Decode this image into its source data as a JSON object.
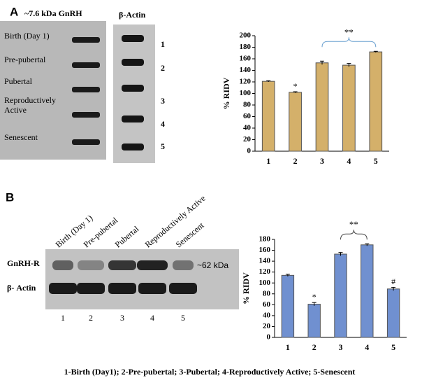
{
  "chart_data": [
    {
      "type": "bar",
      "ylabel": "% RIDV",
      "categories": [
        "1",
        "2",
        "3",
        "4",
        "5"
      ],
      "values": [
        121,
        102,
        153,
        149,
        172
      ],
      "errors": [
        1,
        1,
        3,
        3,
        1
      ],
      "color": "#d4b06a",
      "ylim": [
        0,
        200
      ],
      "yticks": [
        0,
        20,
        40,
        60,
        80,
        100,
        120,
        140,
        160,
        180,
        200
      ],
      "annotations": [
        {
          "label": "*",
          "bars": [
            "2"
          ]
        },
        {
          "label": "**",
          "bars": [
            "3",
            "4",
            "5"
          ]
        }
      ]
    },
    {
      "type": "bar",
      "ylabel": "% RIDV",
      "categories": [
        "1",
        "2",
        "3",
        "4",
        "5"
      ],
      "values": [
        114,
        61,
        153,
        170,
        89
      ],
      "errors": [
        2,
        3,
        3,
        2,
        3
      ],
      "color": "#7090d0",
      "ylim": [
        0,
        180
      ],
      "yticks": [
        0,
        20,
        40,
        60,
        80,
        100,
        120,
        140,
        160,
        180
      ],
      "annotations": [
        {
          "label": "*",
          "bars": [
            "2"
          ]
        },
        {
          "label": "**",
          "bars": [
            "3",
            "4"
          ]
        },
        {
          "label": "#",
          "bars": [
            "5"
          ]
        }
      ]
    }
  ],
  "panel_a": {
    "label": "A",
    "gnrh_header": "~7.6 kDa GnRH",
    "actin_header": "β-Actin",
    "stages": [
      "Birth (Day 1)",
      "Pre-pubertal",
      "Pubertal",
      "Reproductively Active",
      "Senescent"
    ],
    "lanes": [
      "1",
      "2",
      "3",
      "4",
      "5"
    ]
  },
  "panel_b": {
    "label": "B",
    "lane_headers": [
      "Birth (Day 1)",
      "Pre-pubertal",
      "Pubertal",
      "Reproductively Active",
      "Senescent"
    ],
    "rows": [
      "GnRH-R",
      "β- Actin"
    ],
    "size": "~62 kDa",
    "lanes": [
      "1",
      "2",
      "3",
      "4",
      "5"
    ]
  },
  "caption": "1-Birth (Day1); 2-Pre-pubertal; 3-Pubertal; 4-Reproductively Active; 5-Senescent"
}
